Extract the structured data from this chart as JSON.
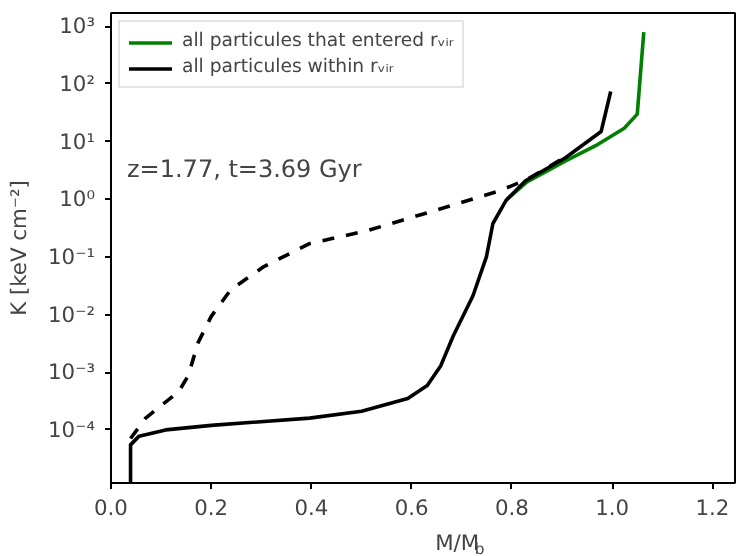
{
  "chart_data": {
    "type": "line",
    "xlabel": "M/M$_{b}$",
    "ylabel": "K [keV cm⁻²]",
    "annotations": [
      "z=1.77, t=3.69 Gyr"
    ],
    "log": "y",
    "grid": false,
    "legend": "top left",
    "marker": "none",
    "xlim": [
      0,
      1.245
    ],
    "ylim": [
      1.2e-05,
      1700
    ],
    "xticks": [
      {
        "value": 0,
        "label": "0.0"
      },
      0.2,
      0.4,
      0.6,
      0.8,
      {
        "value": 1,
        "label": "1.0"
      },
      1.2
    ],
    "yticks": [
      {
        "value": 0.0001,
        "label": "10⁻⁴"
      },
      {
        "value": 0.001,
        "label": "10⁻³"
      },
      {
        "value": 0.01,
        "label": "10⁻²"
      },
      {
        "value": 0.1,
        "label": "10⁻¹"
      },
      {
        "value": 1,
        "label": "10⁰"
      },
      {
        "value": 10,
        "label": "10¹"
      },
      {
        "value": 100,
        "label": "10²"
      },
      {
        "value": 1000,
        "label": "10³"
      }
    ],
    "series": [
      {
        "name": "all particules that entered rᵥᵢᵣ",
        "color": "#008000",
        "line_style": "solid",
        "x": [
          0.79,
          0.83,
          0.906,
          0.971,
          1.024,
          1.05,
          1.063
        ],
        "values": [
          1.0,
          2.0,
          4.6,
          8.9,
          17,
          30,
          790
        ]
      },
      {
        "name": "all particules within rᵥᵢᵣ",
        "color": "#000000",
        "line_style": "solid",
        "x": [
          0.039,
          0.039,
          0.056,
          0.109,
          0.2,
          0.396,
          0.5,
          0.592,
          0.631,
          0.658,
          0.683,
          0.722,
          0.749,
          0.762,
          0.788,
          0.827,
          0.906,
          0.978,
          0.997
        ],
        "values": [
          1.2e-05,
          5.5e-05,
          7.8e-05,
          0.0001,
          0.00012,
          0.00016,
          0.00021,
          0.00035,
          0.00059,
          0.0013,
          0.0043,
          0.021,
          0.1,
          0.38,
          0.95,
          2.1,
          5.2,
          15,
          74
        ]
      },
      {
        "color": "#000000",
        "line_style": "dashed",
        "x": [
          0.039,
          0.069,
          0.135,
          0.154,
          0.174,
          0.2,
          0.239,
          0.305,
          0.396,
          0.514,
          0.644,
          0.775,
          0.83,
          0.9
        ],
        "values": [
          7.1e-05,
          0.00016,
          0.00046,
          0.00087,
          0.0033,
          0.0093,
          0.027,
          0.068,
          0.17,
          0.29,
          0.63,
          1.4,
          2.2,
          5.0
        ]
      }
    ]
  }
}
